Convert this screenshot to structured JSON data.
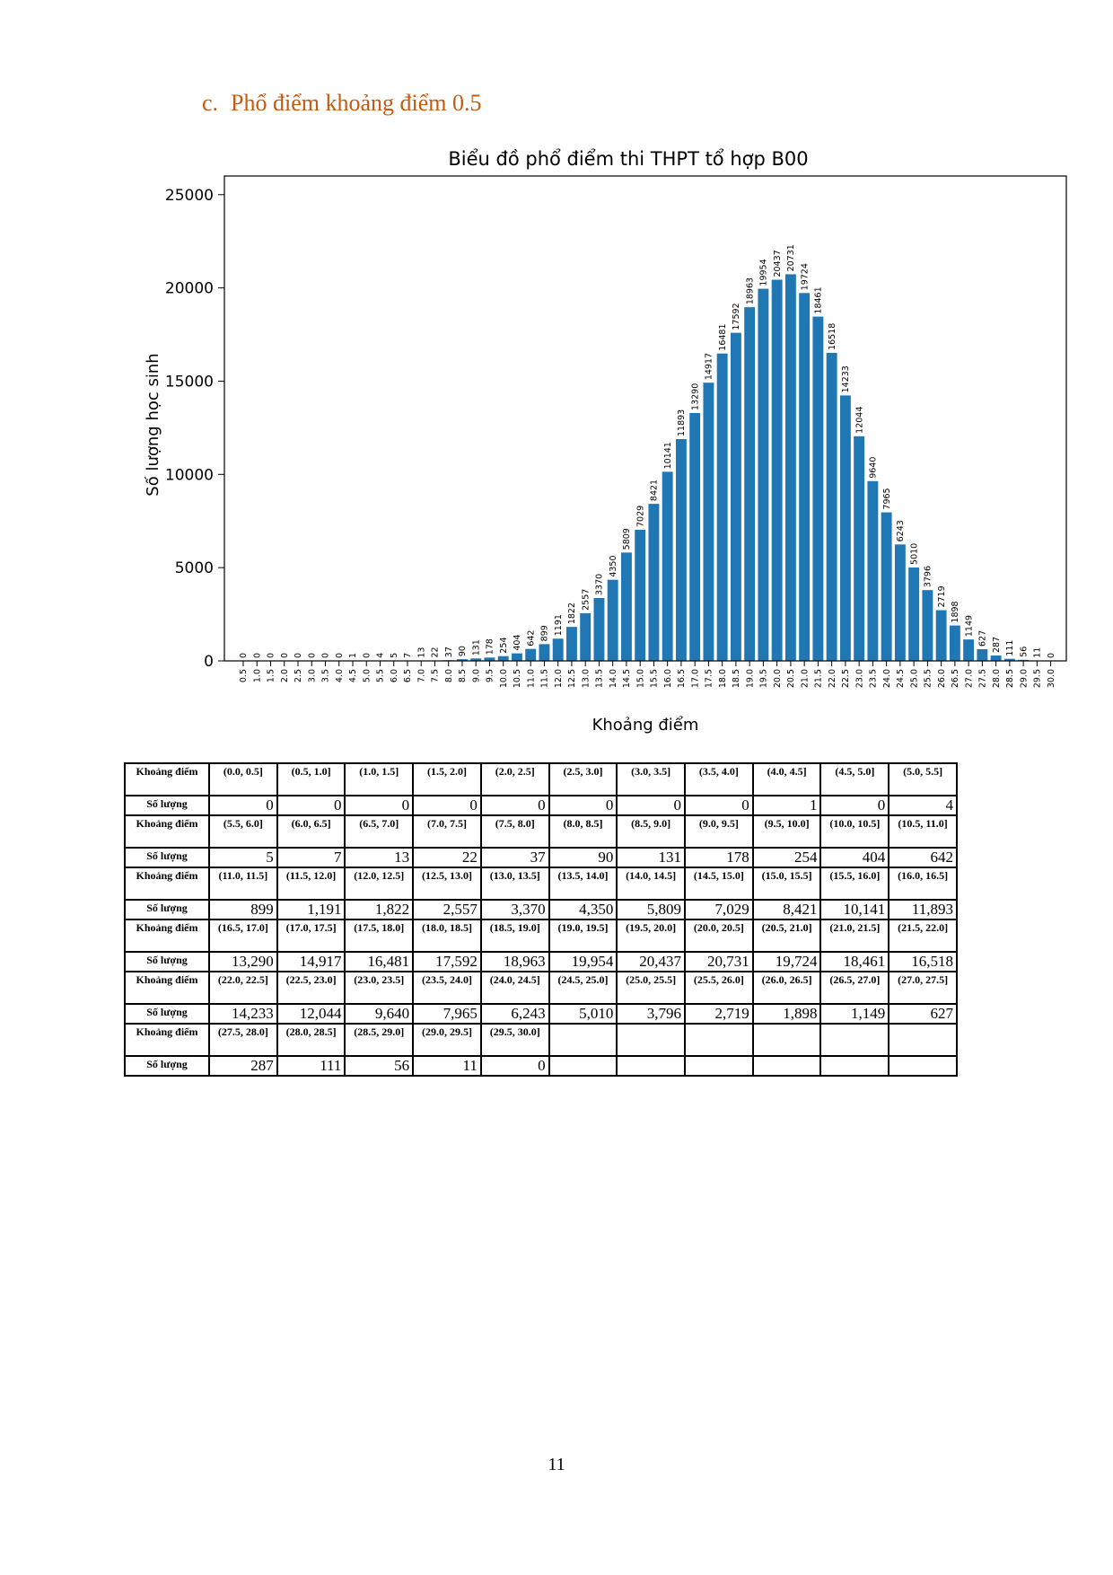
{
  "heading": {
    "number": "c.",
    "text": "Phổ điểm khoảng điểm 0.5"
  },
  "chart_data": {
    "type": "bar",
    "title": "Biểu đồ phổ điểm thi THPT tổ hợp B00",
    "xlabel": "Khoảng điểm",
    "ylabel": "Số lượng học sinh",
    "ylim": [
      0,
      26000
    ],
    "yticks": [
      0,
      5000,
      10000,
      15000,
      20000,
      25000
    ],
    "categories": [
      "0.5",
      "1.0",
      "1.5",
      "2.0",
      "2.5",
      "3.0",
      "3.5",
      "4.0",
      "4.5",
      "5.0",
      "5.5",
      "6.0",
      "6.5",
      "7.0",
      "7.5",
      "8.0",
      "8.5",
      "9.0",
      "9.5",
      "10.0",
      "10.5",
      "11.0",
      "11.5",
      "12.0",
      "12.5",
      "13.0",
      "13.5",
      "14.0",
      "14.5",
      "15.0",
      "15.5",
      "16.0",
      "16.5",
      "17.0",
      "17.5",
      "18.0",
      "18.5",
      "19.0",
      "19.5",
      "20.0",
      "20.5",
      "21.0",
      "21.5",
      "22.0",
      "22.5",
      "23.0",
      "23.5",
      "24.0",
      "24.5",
      "25.0",
      "25.5",
      "26.0",
      "26.5",
      "27.0",
      "27.5",
      "28.0",
      "28.5",
      "29.0",
      "29.5",
      "30.0"
    ],
    "values": [
      0,
      0,
      0,
      0,
      0,
      0,
      0,
      0,
      1,
      0,
      4,
      5,
      7,
      13,
      22,
      37,
      90,
      131,
      178,
      254,
      404,
      642,
      899,
      1191,
      1822,
      2557,
      3370,
      4350,
      5809,
      7029,
      8421,
      10141,
      11893,
      13290,
      14917,
      16481,
      17592,
      18963,
      19954,
      20437,
      20731,
      19724,
      18461,
      16518,
      14233,
      12044,
      9640,
      7965,
      6243,
      5010,
      3796,
      2719,
      1898,
      1149,
      627,
      287,
      111,
      56,
      11,
      0
    ],
    "bar_color": "#1f77b4",
    "grid": false
  },
  "table": {
    "bin_label": "Khoảng điểm",
    "count_label": "Số lượng",
    "rows": [
      {
        "bins": [
          "(0.0, 0.5]",
          "(0.5, 1.0]",
          "(1.0, 1.5]",
          "(1.5, 2.0]",
          "(2.0, 2.5]",
          "(2.5, 3.0]",
          "(3.0, 3.5]",
          "(3.5, 4.0]",
          "(4.0, 4.5]",
          "(4.5, 5.0]",
          "(5.0, 5.5]"
        ],
        "counts": [
          "0",
          "0",
          "0",
          "0",
          "0",
          "0",
          "0",
          "0",
          "1",
          "0",
          "4"
        ]
      },
      {
        "bins": [
          "(5.5, 6.0]",
          "(6.0, 6.5]",
          "(6.5, 7.0]",
          "(7.0, 7.5]",
          "(7.5, 8.0]",
          "(8.0, 8.5]",
          "(8.5, 9.0]",
          "(9.0, 9.5]",
          "(9.5, 10.0]",
          "(10.0, 10.5]",
          "(10.5, 11.0]"
        ],
        "counts": [
          "5",
          "7",
          "13",
          "22",
          "37",
          "90",
          "131",
          "178",
          "254",
          "404",
          "642"
        ]
      },
      {
        "bins": [
          "(11.0, 11.5]",
          "(11.5, 12.0]",
          "(12.0, 12.5]",
          "(12.5, 13.0]",
          "(13.0, 13.5]",
          "(13.5, 14.0]",
          "(14.0, 14.5]",
          "(14.5, 15.0]",
          "(15.0, 15.5]",
          "(15.5, 16.0]",
          "(16.0, 16.5]"
        ],
        "counts": [
          "899",
          "1,191",
          "1,822",
          "2,557",
          "3,370",
          "4,350",
          "5,809",
          "7,029",
          "8,421",
          "10,141",
          "11,893"
        ]
      },
      {
        "bins": [
          "(16.5, 17.0]",
          "(17.0, 17.5]",
          "(17.5, 18.0]",
          "(18.0, 18.5]",
          "(18.5, 19.0]",
          "(19.0, 19.5]",
          "(19.5, 20.0]",
          "(20.0, 20.5]",
          "(20.5, 21.0]",
          "(21.0, 21.5]",
          "(21.5, 22.0]"
        ],
        "counts": [
          "13,290",
          "14,917",
          "16,481",
          "17,592",
          "18,963",
          "19,954",
          "20,437",
          "20,731",
          "19,724",
          "18,461",
          "16,518"
        ]
      },
      {
        "bins": [
          "(22.0, 22.5]",
          "(22.5, 23.0]",
          "(23.0, 23.5]",
          "(23.5, 24.0]",
          "(24.0, 24.5]",
          "(24.5, 25.0]",
          "(25.0, 25.5]",
          "(25.5, 26.0]",
          "(26.0, 26.5]",
          "(26.5, 27.0]",
          "(27.0, 27.5]"
        ],
        "counts": [
          "14,233",
          "12,044",
          "9,640",
          "7,965",
          "6,243",
          "5,010",
          "3,796",
          "2,719",
          "1,898",
          "1,149",
          "627"
        ]
      },
      {
        "bins": [
          "(27.5, 28.0]",
          "(28.0, 28.5]",
          "(28.5, 29.0]",
          "(29.0, 29.5]",
          "(29.5, 30.0]",
          "",
          "",
          "",
          "",
          "",
          ""
        ],
        "counts": [
          "287",
          "111",
          "56",
          "11",
          "0",
          "",
          "",
          "",
          "",
          "",
          ""
        ]
      }
    ]
  },
  "page_number": "11"
}
